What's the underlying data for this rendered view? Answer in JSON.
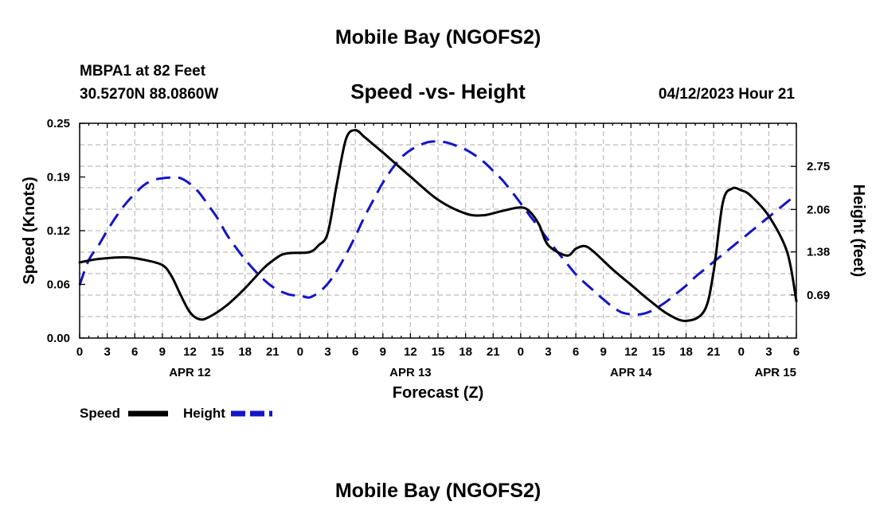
{
  "header": {
    "title": "Mobile Bay (NGOFS2)",
    "station": "MBPA1 at 82 Feet",
    "coords": "30.5270N  88.0860W",
    "subtitle": "Speed -vs- Height",
    "datetime": "04/12/2023 Hour 21",
    "footer_title": "Mobile Bay (NGOFS2)"
  },
  "chart_data": {
    "type": "line",
    "title": "Speed -vs- Height",
    "xlabel": "Forecast (Z)",
    "ylabel": "Speed (Knots)",
    "y2label": "Height (feet)",
    "x_range_hours": [
      0,
      78
    ],
    "x_tick_labels": [
      "0",
      "3",
      "6",
      "9",
      "12",
      "15",
      "18",
      "21",
      "0",
      "3",
      "6",
      "9",
      "12",
      "15",
      "18",
      "21",
      "0",
      "3",
      "6",
      "9",
      "12",
      "15",
      "18",
      "21",
      "0",
      "3",
      "6"
    ],
    "date_labels": [
      {
        "label": "APR 12",
        "hour": 12
      },
      {
        "label": "APR 13",
        "hour": 36
      },
      {
        "label": "APR 14",
        "hour": 60
      },
      {
        "label": "APR 15",
        "hour": 78
      }
    ],
    "ylim": [
      0,
      0.25
    ],
    "y_tick_labels": [
      "0.00",
      "0.06",
      "0.12",
      "0.19",
      "0.25"
    ],
    "y_tick_values": [
      0,
      0.0625,
      0.125,
      0.1875,
      0.25
    ],
    "y2lim": [
      0,
      3.44
    ],
    "y2_tick_labels": [
      "0.69",
      "1.38",
      "2.06",
      "2.75"
    ],
    "y2_tick_values": [
      0.69,
      1.38,
      2.06,
      2.75
    ],
    "series": [
      {
        "name": "Speed",
        "axis": "left",
        "color": "#000000",
        "style": "solid",
        "x": [
          0,
          2,
          5,
          7,
          9,
          10,
          11,
          12,
          13,
          14,
          16,
          18,
          20,
          21,
          22,
          23,
          25,
          26,
          27,
          28,
          29,
          30,
          31,
          32,
          33,
          36,
          39,
          42,
          44,
          46,
          48,
          49,
          50,
          51,
          53,
          54,
          55,
          56,
          58,
          60,
          62,
          64,
          66,
          68,
          69,
          70,
          71,
          72,
          73,
          75,
          77,
          78
        ],
        "values": [
          0.088,
          0.092,
          0.094,
          0.091,
          0.085,
          0.072,
          0.05,
          0.03,
          0.022,
          0.024,
          0.038,
          0.058,
          0.081,
          0.09,
          0.097,
          0.099,
          0.1,
          0.108,
          0.122,
          0.18,
          0.232,
          0.242,
          0.234,
          0.225,
          0.216,
          0.188,
          0.161,
          0.145,
          0.143,
          0.148,
          0.152,
          0.147,
          0.132,
          0.108,
          0.096,
          0.104,
          0.107,
          0.1,
          0.08,
          0.062,
          0.044,
          0.028,
          0.02,
          0.032,
          0.078,
          0.158,
          0.174,
          0.172,
          0.166,
          0.142,
          0.1,
          0.043
        ]
      },
      {
        "name": "Height",
        "axis": "right",
        "color": "#1414c8",
        "style": "dashed",
        "x": [
          0,
          1,
          2,
          3,
          4,
          5,
          6,
          7,
          8,
          9,
          10,
          11,
          12,
          13,
          14,
          15,
          16,
          17,
          18,
          19,
          20,
          21,
          22,
          23,
          24,
          25,
          26,
          27,
          28,
          29,
          30,
          31,
          32,
          33,
          34,
          35,
          36,
          37,
          38,
          39,
          40,
          41,
          42,
          43,
          44,
          45,
          46,
          47,
          48,
          49,
          50,
          51,
          52,
          53,
          54,
          55,
          56,
          57,
          58,
          59,
          60,
          61,
          62,
          63,
          64,
          65,
          66,
          67,
          68,
          69,
          70,
          71,
          72,
          73,
          74,
          75,
          76,
          77,
          78
        ],
        "values": [
          0.85,
          1.25,
          1.47,
          1.72,
          1.95,
          2.15,
          2.31,
          2.45,
          2.53,
          2.56,
          2.57,
          2.56,
          2.47,
          2.33,
          2.13,
          1.92,
          1.66,
          1.45,
          1.26,
          1.09,
          0.94,
          0.82,
          0.74,
          0.69,
          0.68,
          0.65,
          0.73,
          0.87,
          1.08,
          1.34,
          1.63,
          1.94,
          2.22,
          2.49,
          2.71,
          2.89,
          3.01,
          3.09,
          3.14,
          3.15,
          3.13,
          3.08,
          3.02,
          2.93,
          2.82,
          2.68,
          2.53,
          2.35,
          2.16,
          1.96,
          1.77,
          1.57,
          1.38,
          1.2,
          1.02,
          0.88,
          0.75,
          0.62,
          0.5,
          0.41,
          0.38,
          0.38,
          0.42,
          0.5,
          0.6,
          0.72,
          0.84,
          0.98,
          1.1,
          1.22,
          1.34,
          1.46,
          1.58,
          1.7,
          1.82,
          1.94,
          2.06,
          2.18,
          2.3
        ]
      }
    ]
  }
}
